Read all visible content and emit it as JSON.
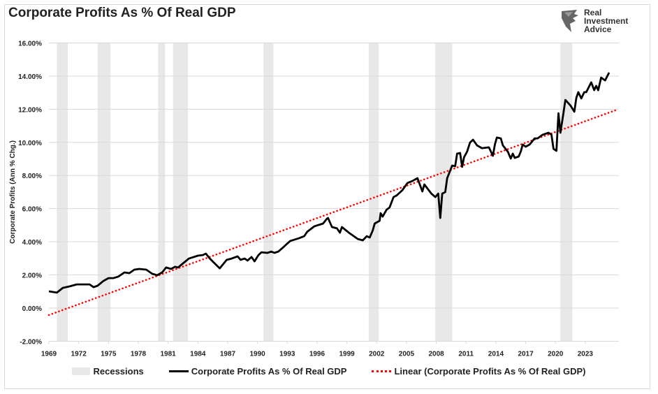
{
  "chart_data": {
    "type": "line",
    "title": "Corporate Profits As % Of Real GDP",
    "ylabel": "Corporate Profits (Ann % Chg.)",
    "xlabel": "",
    "ylim": [
      -2,
      16
    ],
    "xlim": [
      1969,
      2026.2
    ],
    "y_ticks": [
      "-2.00%",
      "0.00%",
      "2.00%",
      "4.00%",
      "6.00%",
      "8.00%",
      "10.00%",
      "12.00%",
      "14.00%",
      "16.00%"
    ],
    "x_ticks": [
      "1969",
      "1972",
      "1975",
      "1978",
      "1981",
      "1984",
      "1987",
      "1990",
      "1993",
      "1996",
      "1999",
      "2002",
      "2005",
      "2008",
      "2011",
      "2014",
      "2017",
      "2020",
      "2023"
    ],
    "grid": "horizontal",
    "legend_position": "bottom",
    "colors": {
      "series": "#000000",
      "trend": "#ff0000",
      "recession": "#e8e8e8"
    },
    "recessions": [
      [
        1969.8,
        1970.9
      ],
      [
        1973.9,
        1975.2
      ],
      [
        1980.0,
        1980.7
      ],
      [
        1981.5,
        1983.0
      ],
      [
        1990.6,
        1991.6
      ],
      [
        2001.2,
        2002.2
      ],
      [
        2007.9,
        2009.6
      ],
      [
        2020.5,
        2021.7
      ]
    ],
    "series": [
      {
        "name": "Corporate Profits As % Of Real GDP",
        "points": [
          [
            1969.0,
            1.01
          ],
          [
            1969.8,
            0.93
          ],
          [
            1970.4,
            1.22
          ],
          [
            1971.1,
            1.31
          ],
          [
            1971.8,
            1.43
          ],
          [
            1973.1,
            1.43
          ],
          [
            1973.5,
            1.26
          ],
          [
            1973.9,
            1.35
          ],
          [
            1974.5,
            1.64
          ],
          [
            1975.0,
            1.81
          ],
          [
            1975.5,
            1.81
          ],
          [
            1976.0,
            1.9
          ],
          [
            1976.6,
            2.15
          ],
          [
            1977.1,
            2.11
          ],
          [
            1977.6,
            2.32
          ],
          [
            1978.1,
            2.36
          ],
          [
            1978.8,
            2.32
          ],
          [
            1979.4,
            2.07
          ],
          [
            1979.9,
            1.98
          ],
          [
            1980.4,
            2.15
          ],
          [
            1980.8,
            2.45
          ],
          [
            1981.3,
            2.36
          ],
          [
            1981.7,
            2.49
          ],
          [
            1982.0,
            2.45
          ],
          [
            1982.5,
            2.7
          ],
          [
            1983.1,
            2.99
          ],
          [
            1984.0,
            3.16
          ],
          [
            1984.5,
            3.2
          ],
          [
            1984.8,
            3.29
          ],
          [
            1985.2,
            2.99
          ],
          [
            1985.9,
            2.57
          ],
          [
            1986.2,
            2.4
          ],
          [
            1986.9,
            2.91
          ],
          [
            1987.4,
            2.99
          ],
          [
            1988.0,
            3.12
          ],
          [
            1988.3,
            2.91
          ],
          [
            1988.7,
            2.99
          ],
          [
            1989.0,
            2.87
          ],
          [
            1989.4,
            3.08
          ],
          [
            1989.7,
            2.82
          ],
          [
            1990.1,
            3.2
          ],
          [
            1990.4,
            3.37
          ],
          [
            1991.0,
            3.33
          ],
          [
            1991.4,
            3.41
          ],
          [
            1991.7,
            3.33
          ],
          [
            1992.1,
            3.41
          ],
          [
            1992.6,
            3.67
          ],
          [
            1992.9,
            3.84
          ],
          [
            1993.3,
            4.05
          ],
          [
            1994.2,
            4.22
          ],
          [
            1994.7,
            4.34
          ],
          [
            1995.0,
            4.6
          ],
          [
            1995.7,
            4.93
          ],
          [
            1996.6,
            5.1
          ],
          [
            1997.0,
            5.4
          ],
          [
            1997.1,
            5.44
          ],
          [
            1997.5,
            4.89
          ],
          [
            1998.0,
            4.81
          ],
          [
            1998.3,
            4.55
          ],
          [
            1998.5,
            4.89
          ],
          [
            1999.2,
            4.55
          ],
          [
            1999.7,
            4.34
          ],
          [
            2000.1,
            4.17
          ],
          [
            2000.6,
            4.09
          ],
          [
            2001.0,
            4.34
          ],
          [
            2001.3,
            4.26
          ],
          [
            2001.6,
            4.68
          ],
          [
            2001.8,
            5.1
          ],
          [
            2002.3,
            5.27
          ],
          [
            2002.4,
            5.73
          ],
          [
            2002.6,
            5.52
          ],
          [
            2003.0,
            5.94
          ],
          [
            2003.3,
            6.07
          ],
          [
            2003.7,
            6.7
          ],
          [
            2004.0,
            6.79
          ],
          [
            2004.6,
            7.12
          ],
          [
            2005.1,
            7.55
          ],
          [
            2005.6,
            7.67
          ],
          [
            2006.1,
            7.84
          ],
          [
            2006.6,
            7.04
          ],
          [
            2006.8,
            7.46
          ],
          [
            2007.5,
            6.91
          ],
          [
            2007.9,
            6.7
          ],
          [
            2008.2,
            6.91
          ],
          [
            2008.4,
            5.44
          ],
          [
            2008.6,
            6.91
          ],
          [
            2008.9,
            7.0
          ],
          [
            2009.1,
            7.84
          ],
          [
            2009.6,
            8.6
          ],
          [
            2009.9,
            8.56
          ],
          [
            2010.1,
            9.32
          ],
          [
            2010.4,
            9.36
          ],
          [
            2010.6,
            8.52
          ],
          [
            2010.8,
            9.11
          ],
          [
            2011.1,
            9.44
          ],
          [
            2011.4,
            9.99
          ],
          [
            2011.7,
            10.16
          ],
          [
            2012.1,
            9.82
          ],
          [
            2012.6,
            9.65
          ],
          [
            2013.3,
            9.7
          ],
          [
            2013.7,
            9.19
          ],
          [
            2013.9,
            9.87
          ],
          [
            2014.1,
            10.29
          ],
          [
            2014.5,
            10.24
          ],
          [
            2014.7,
            9.82
          ],
          [
            2015.2,
            9.44
          ],
          [
            2015.5,
            9.02
          ],
          [
            2015.7,
            9.32
          ],
          [
            2015.9,
            9.06
          ],
          [
            2016.3,
            9.15
          ],
          [
            2016.5,
            9.44
          ],
          [
            2016.7,
            9.87
          ],
          [
            2017.0,
            9.74
          ],
          [
            2017.4,
            9.87
          ],
          [
            2017.9,
            10.24
          ],
          [
            2018.2,
            10.24
          ],
          [
            2018.7,
            10.46
          ],
          [
            2019.3,
            10.58
          ],
          [
            2019.6,
            10.46
          ],
          [
            2019.8,
            9.61
          ],
          [
            2020.1,
            9.49
          ],
          [
            2020.3,
            11.76
          ],
          [
            2020.5,
            10.58
          ],
          [
            2020.8,
            11.76
          ],
          [
            2021.0,
            12.56
          ],
          [
            2021.5,
            12.23
          ],
          [
            2021.9,
            11.85
          ],
          [
            2022.1,
            12.69
          ],
          [
            2022.3,
            13.03
          ],
          [
            2022.6,
            12.65
          ],
          [
            2022.9,
            13.03
          ],
          [
            2023.1,
            13.03
          ],
          [
            2023.6,
            13.62
          ],
          [
            2023.9,
            13.15
          ],
          [
            2024.1,
            13.41
          ],
          [
            2024.3,
            13.15
          ],
          [
            2024.6,
            13.91
          ],
          [
            2025.0,
            13.74
          ],
          [
            2025.4,
            14.21
          ]
        ]
      },
      {
        "name": "Linear (Corporate Profits As % Of Real GDP)",
        "points": [
          [
            1969.0,
            -0.42
          ],
          [
            2026.2,
            11.97
          ]
        ]
      }
    ],
    "legend": [
      "Recessions",
      "Corporate Profits As % Of Real GDP",
      "Linear (Corporate Profits As % Of Real GDP)"
    ]
  },
  "logo": {
    "text_lines": [
      "Real",
      "Investment",
      "Advice"
    ]
  }
}
